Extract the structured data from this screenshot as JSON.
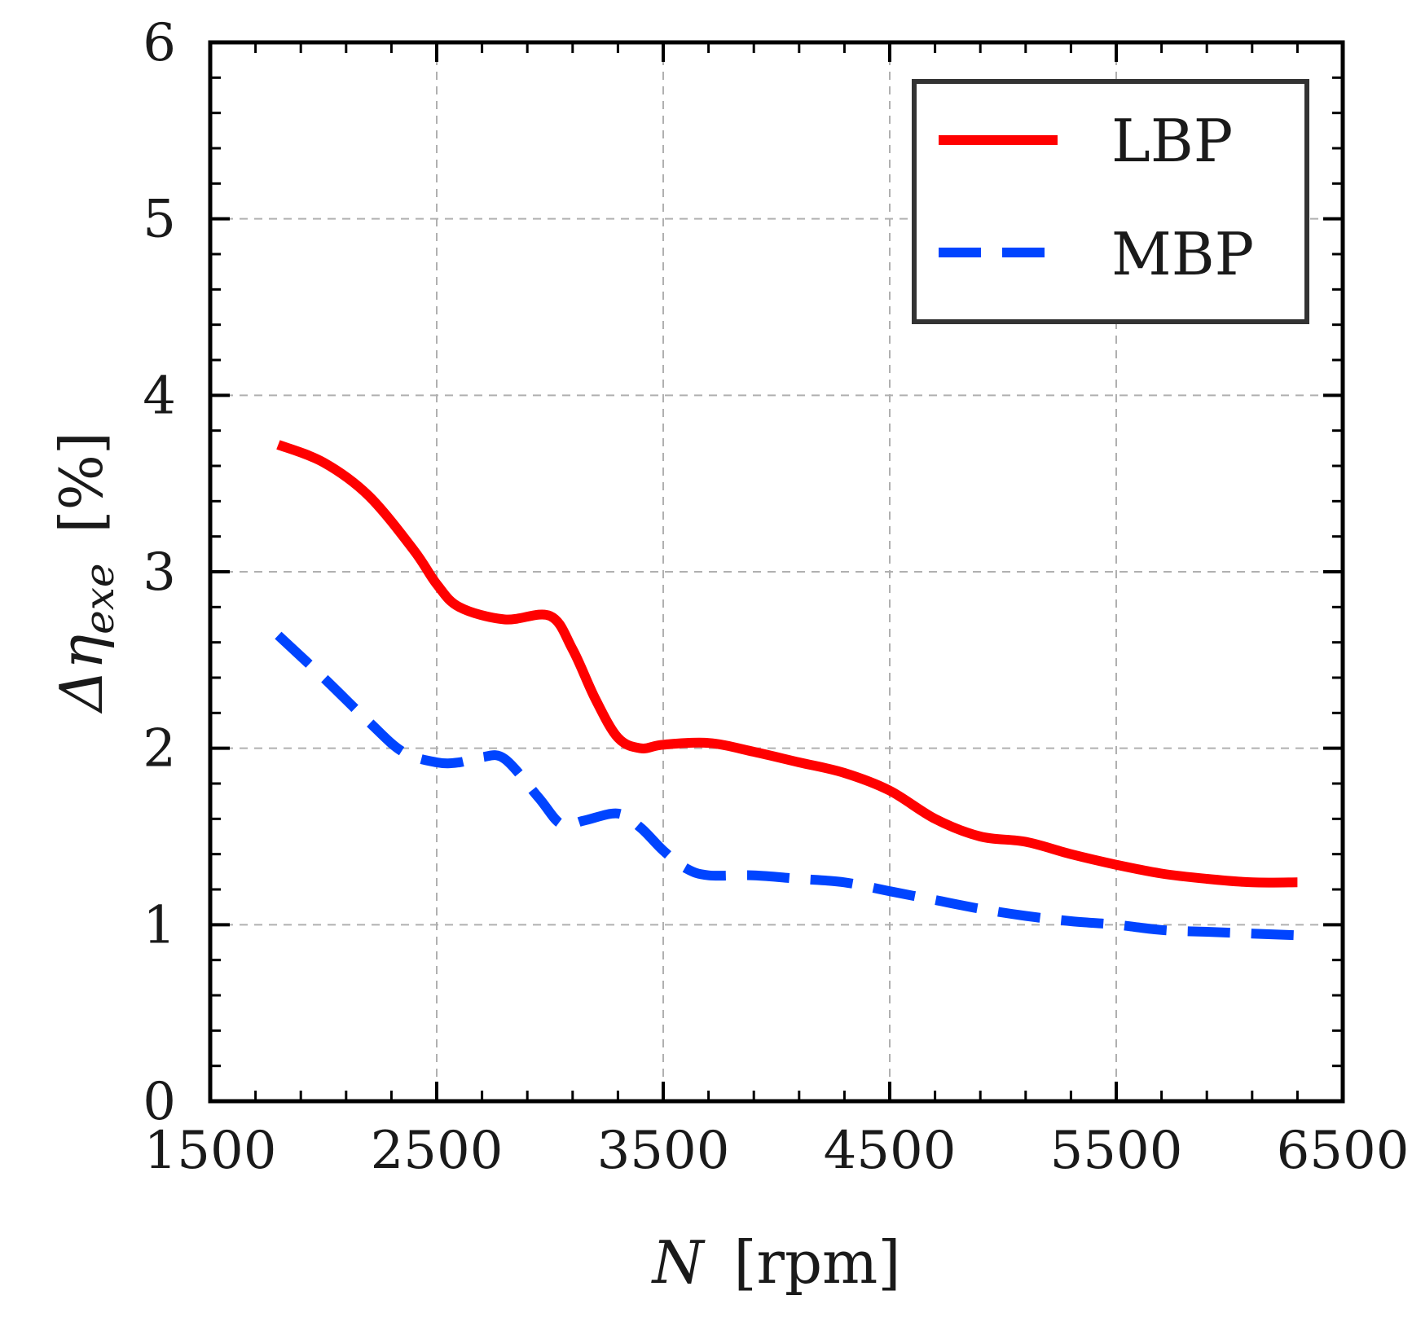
{
  "chart_data": {
    "type": "line",
    "xlabel": {
      "symbol": "N",
      "unit": "[rpm]"
    },
    "ylabel": {
      "symbol": "Δη",
      "subscript": "exe",
      "unit": "[%]"
    },
    "xlim": [
      1500,
      6500
    ],
    "ylim": [
      0,
      6
    ],
    "xticks": [
      1500,
      2500,
      3500,
      4500,
      5500,
      6500
    ],
    "yticks": [
      0,
      1,
      2,
      3,
      4,
      5,
      6
    ],
    "xtick_labels": [
      "1500",
      "2500",
      "3500",
      "4500",
      "5500",
      "6500"
    ],
    "ytick_labels": [
      "0",
      "1",
      "2",
      "3",
      "4",
      "5",
      "6"
    ],
    "grid": true,
    "legend_position": "top-right",
    "series": [
      {
        "name": "LBP",
        "color": "#ff0000",
        "style": "solid",
        "x": [
          1800,
          2000,
          2200,
          2400,
          2500,
          2600,
          2800,
          3000,
          3100,
          3200,
          3300,
          3400,
          3500,
          3700,
          3900,
          4100,
          4300,
          4500,
          4700,
          4900,
          5100,
          5300,
          5500,
          5700,
          5900,
          6100,
          6300
        ],
        "values": [
          3.72,
          3.62,
          3.43,
          3.12,
          2.93,
          2.8,
          2.73,
          2.75,
          2.56,
          2.28,
          2.06,
          2.0,
          2.02,
          2.03,
          1.98,
          1.92,
          1.86,
          1.76,
          1.6,
          1.5,
          1.47,
          1.4,
          1.34,
          1.29,
          1.26,
          1.24,
          1.24
        ]
      },
      {
        "name": "MBP",
        "color": "#0044ff",
        "style": "dashed",
        "x": [
          1800,
          2000,
          2200,
          2350,
          2500,
          2600,
          2700,
          2800,
          2950,
          3050,
          3150,
          3300,
          3400,
          3500,
          3600,
          3700,
          3900,
          4100,
          4300,
          4500,
          4700,
          4900,
          5100,
          5300,
          5500,
          5700,
          5900,
          6100,
          6300
        ],
        "values": [
          2.64,
          2.4,
          2.15,
          1.98,
          1.92,
          1.92,
          1.95,
          1.94,
          1.72,
          1.57,
          1.59,
          1.63,
          1.55,
          1.42,
          1.32,
          1.28,
          1.28,
          1.26,
          1.24,
          1.19,
          1.14,
          1.09,
          1.05,
          1.02,
          1.0,
          0.97,
          0.96,
          0.95,
          0.94
        ]
      }
    ]
  }
}
